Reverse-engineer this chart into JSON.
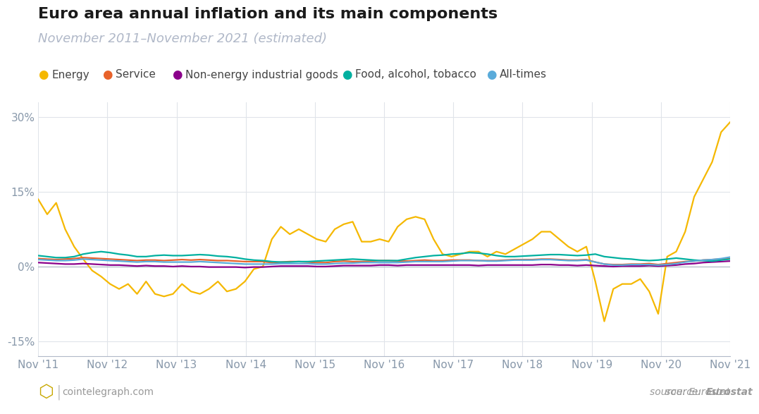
{
  "title": "Euro area annual inflation and its main components",
  "subtitle": "November 2011–November 2021 (estimated)",
  "title_color": "#1a1a1a",
  "subtitle_color": "#b0b8c8",
  "background_color": "#ffffff",
  "plot_background": "#ffffff",
  "grid_color": "#e0e4ea",
  "axis_color": "#b0b8c8",
  "tick_color": "#8898aa",
  "legend_entries": [
    "Energy",
    "Service",
    "Non-energy industrial goods",
    "Food, alcohol, tobacco",
    "All-times"
  ],
  "line_colors": [
    "#f5b800",
    "#e8622a",
    "#8b008b",
    "#00b0a0",
    "#5aabda"
  ],
  "x_labels": [
    "Nov '11",
    "Nov '12",
    "Nov '13",
    "Nov '14",
    "Nov '15",
    "Nov '16",
    "Nov '17",
    "Nov '18",
    "Nov '19",
    "Nov '20",
    "Nov '21"
  ],
  "ylim": [
    -18,
    33
  ],
  "yticks": [
    -15,
    0,
    15,
    30
  ],
  "ytick_labels": [
    "-15%",
    "0%",
    "15%",
    "30%"
  ],
  "footer_left": "cointelegraph.com",
  "footer_right": "source: Eurostat",
  "energy": [
    13.5,
    10.5,
    12.8,
    7.5,
    4.0,
    1.5,
    -0.8,
    -2.0,
    -3.5,
    -4.5,
    -3.5,
    -5.5,
    -3.0,
    -5.5,
    -6.0,
    -5.5,
    -3.5,
    -5.0,
    -5.5,
    -4.5,
    -3.0,
    -5.0,
    -4.5,
    -3.0,
    -0.5,
    0.0,
    5.5,
    8.0,
    6.5,
    7.5,
    6.5,
    5.5,
    5.0,
    7.5,
    8.5,
    9.0,
    5.0,
    5.0,
    5.5,
    5.0,
    8.0,
    9.5,
    10.0,
    9.5,
    5.5,
    2.5,
    2.0,
    2.5,
    3.0,
    3.0,
    2.0,
    3.0,
    2.5,
    3.5,
    4.5,
    5.5,
    7.0,
    7.0,
    5.5,
    4.0,
    3.0,
    4.0,
    -3.0,
    -11.0,
    -4.5,
    -3.5,
    -3.5,
    -2.5,
    -5.0,
    -9.5,
    2.0,
    3.0,
    7.0,
    14.0,
    17.5,
    21.0,
    27.0,
    29.0
  ],
  "service": [
    1.6,
    1.5,
    1.4,
    1.5,
    1.6,
    1.8,
    1.7,
    1.6,
    1.5,
    1.4,
    1.3,
    1.2,
    1.3,
    1.3,
    1.2,
    1.3,
    1.4,
    1.3,
    1.4,
    1.3,
    1.2,
    1.2,
    1.1,
    1.0,
    1.0,
    1.0,
    0.8,
    0.9,
    1.0,
    1.0,
    0.9,
    0.8,
    0.8,
    1.0,
    1.1,
    1.0,
    1.0,
    1.1,
    1.2,
    1.2,
    1.1,
    1.1,
    1.2,
    1.3,
    1.2,
    1.2,
    1.3,
    1.3,
    1.3,
    1.2,
    1.2,
    1.2,
    1.3,
    1.4,
    1.4,
    1.4,
    1.5,
    1.5,
    1.4,
    1.3,
    1.3,
    1.4,
    0.9,
    0.5,
    0.4,
    0.4,
    0.5,
    0.5,
    0.6,
    0.4,
    0.6,
    0.8,
    1.0,
    1.1,
    1.3,
    1.4,
    1.5,
    1.6
  ],
  "non_energy_goods": [
    0.8,
    0.7,
    0.6,
    0.5,
    0.5,
    0.6,
    0.5,
    0.4,
    0.3,
    0.3,
    0.2,
    0.1,
    0.2,
    0.1,
    0.1,
    0.0,
    0.1,
    0.0,
    0.0,
    -0.1,
    -0.1,
    -0.1,
    -0.1,
    -0.2,
    -0.1,
    -0.1,
    0.0,
    0.1,
    0.1,
    0.1,
    0.1,
    0.0,
    0.0,
    0.1,
    0.2,
    0.2,
    0.2,
    0.2,
    0.3,
    0.3,
    0.2,
    0.3,
    0.3,
    0.3,
    0.3,
    0.3,
    0.3,
    0.3,
    0.3,
    0.2,
    0.3,
    0.3,
    0.3,
    0.3,
    0.3,
    0.3,
    0.4,
    0.4,
    0.3,
    0.3,
    0.2,
    0.3,
    0.2,
    0.1,
    0.0,
    0.1,
    0.1,
    0.1,
    0.2,
    0.1,
    0.2,
    0.3,
    0.5,
    0.6,
    0.8,
    0.9,
    1.0,
    1.1
  ],
  "food": [
    2.2,
    2.0,
    1.8,
    1.8,
    2.0,
    2.5,
    2.8,
    3.0,
    2.8,
    2.5,
    2.3,
    2.0,
    2.0,
    2.2,
    2.3,
    2.2,
    2.2,
    2.3,
    2.4,
    2.3,
    2.1,
    2.0,
    1.8,
    1.5,
    1.3,
    1.2,
    1.0,
    0.9,
    0.9,
    1.0,
    1.0,
    1.1,
    1.2,
    1.3,
    1.4,
    1.5,
    1.4,
    1.3,
    1.2,
    1.2,
    1.2,
    1.5,
    1.8,
    2.0,
    2.2,
    2.3,
    2.5,
    2.6,
    2.8,
    2.7,
    2.5,
    2.2,
    2.0,
    2.0,
    2.1,
    2.2,
    2.3,
    2.4,
    2.4,
    2.3,
    2.2,
    2.3,
    2.5,
    2.0,
    1.8,
    1.6,
    1.5,
    1.3,
    1.2,
    1.3,
    1.5,
    1.7,
    1.5,
    1.3,
    1.2,
    1.1,
    1.3,
    1.5
  ],
  "all_times": [
    1.4,
    1.3,
    1.2,
    1.2,
    1.3,
    1.5,
    1.4,
    1.3,
    1.2,
    1.1,
    1.0,
    0.9,
    1.0,
    1.0,
    0.9,
    0.9,
    0.9,
    0.9,
    1.0,
    0.9,
    0.8,
    0.7,
    0.6,
    0.5,
    0.5,
    0.5,
    0.5,
    0.6,
    0.6,
    0.6,
    0.6,
    0.5,
    0.5,
    0.6,
    0.7,
    0.7,
    0.8,
    0.8,
    0.8,
    0.8,
    0.8,
    0.9,
    1.0,
    1.0,
    1.0,
    1.0,
    1.1,
    1.2,
    1.2,
    1.2,
    1.1,
    1.1,
    1.2,
    1.3,
    1.3,
    1.3,
    1.4,
    1.4,
    1.3,
    1.2,
    1.2,
    1.3,
    0.9,
    0.5,
    0.3,
    0.3,
    0.4,
    0.4,
    0.4,
    0.3,
    0.4,
    0.6,
    0.9,
    1.1,
    1.3,
    1.4,
    1.6,
    1.9
  ]
}
